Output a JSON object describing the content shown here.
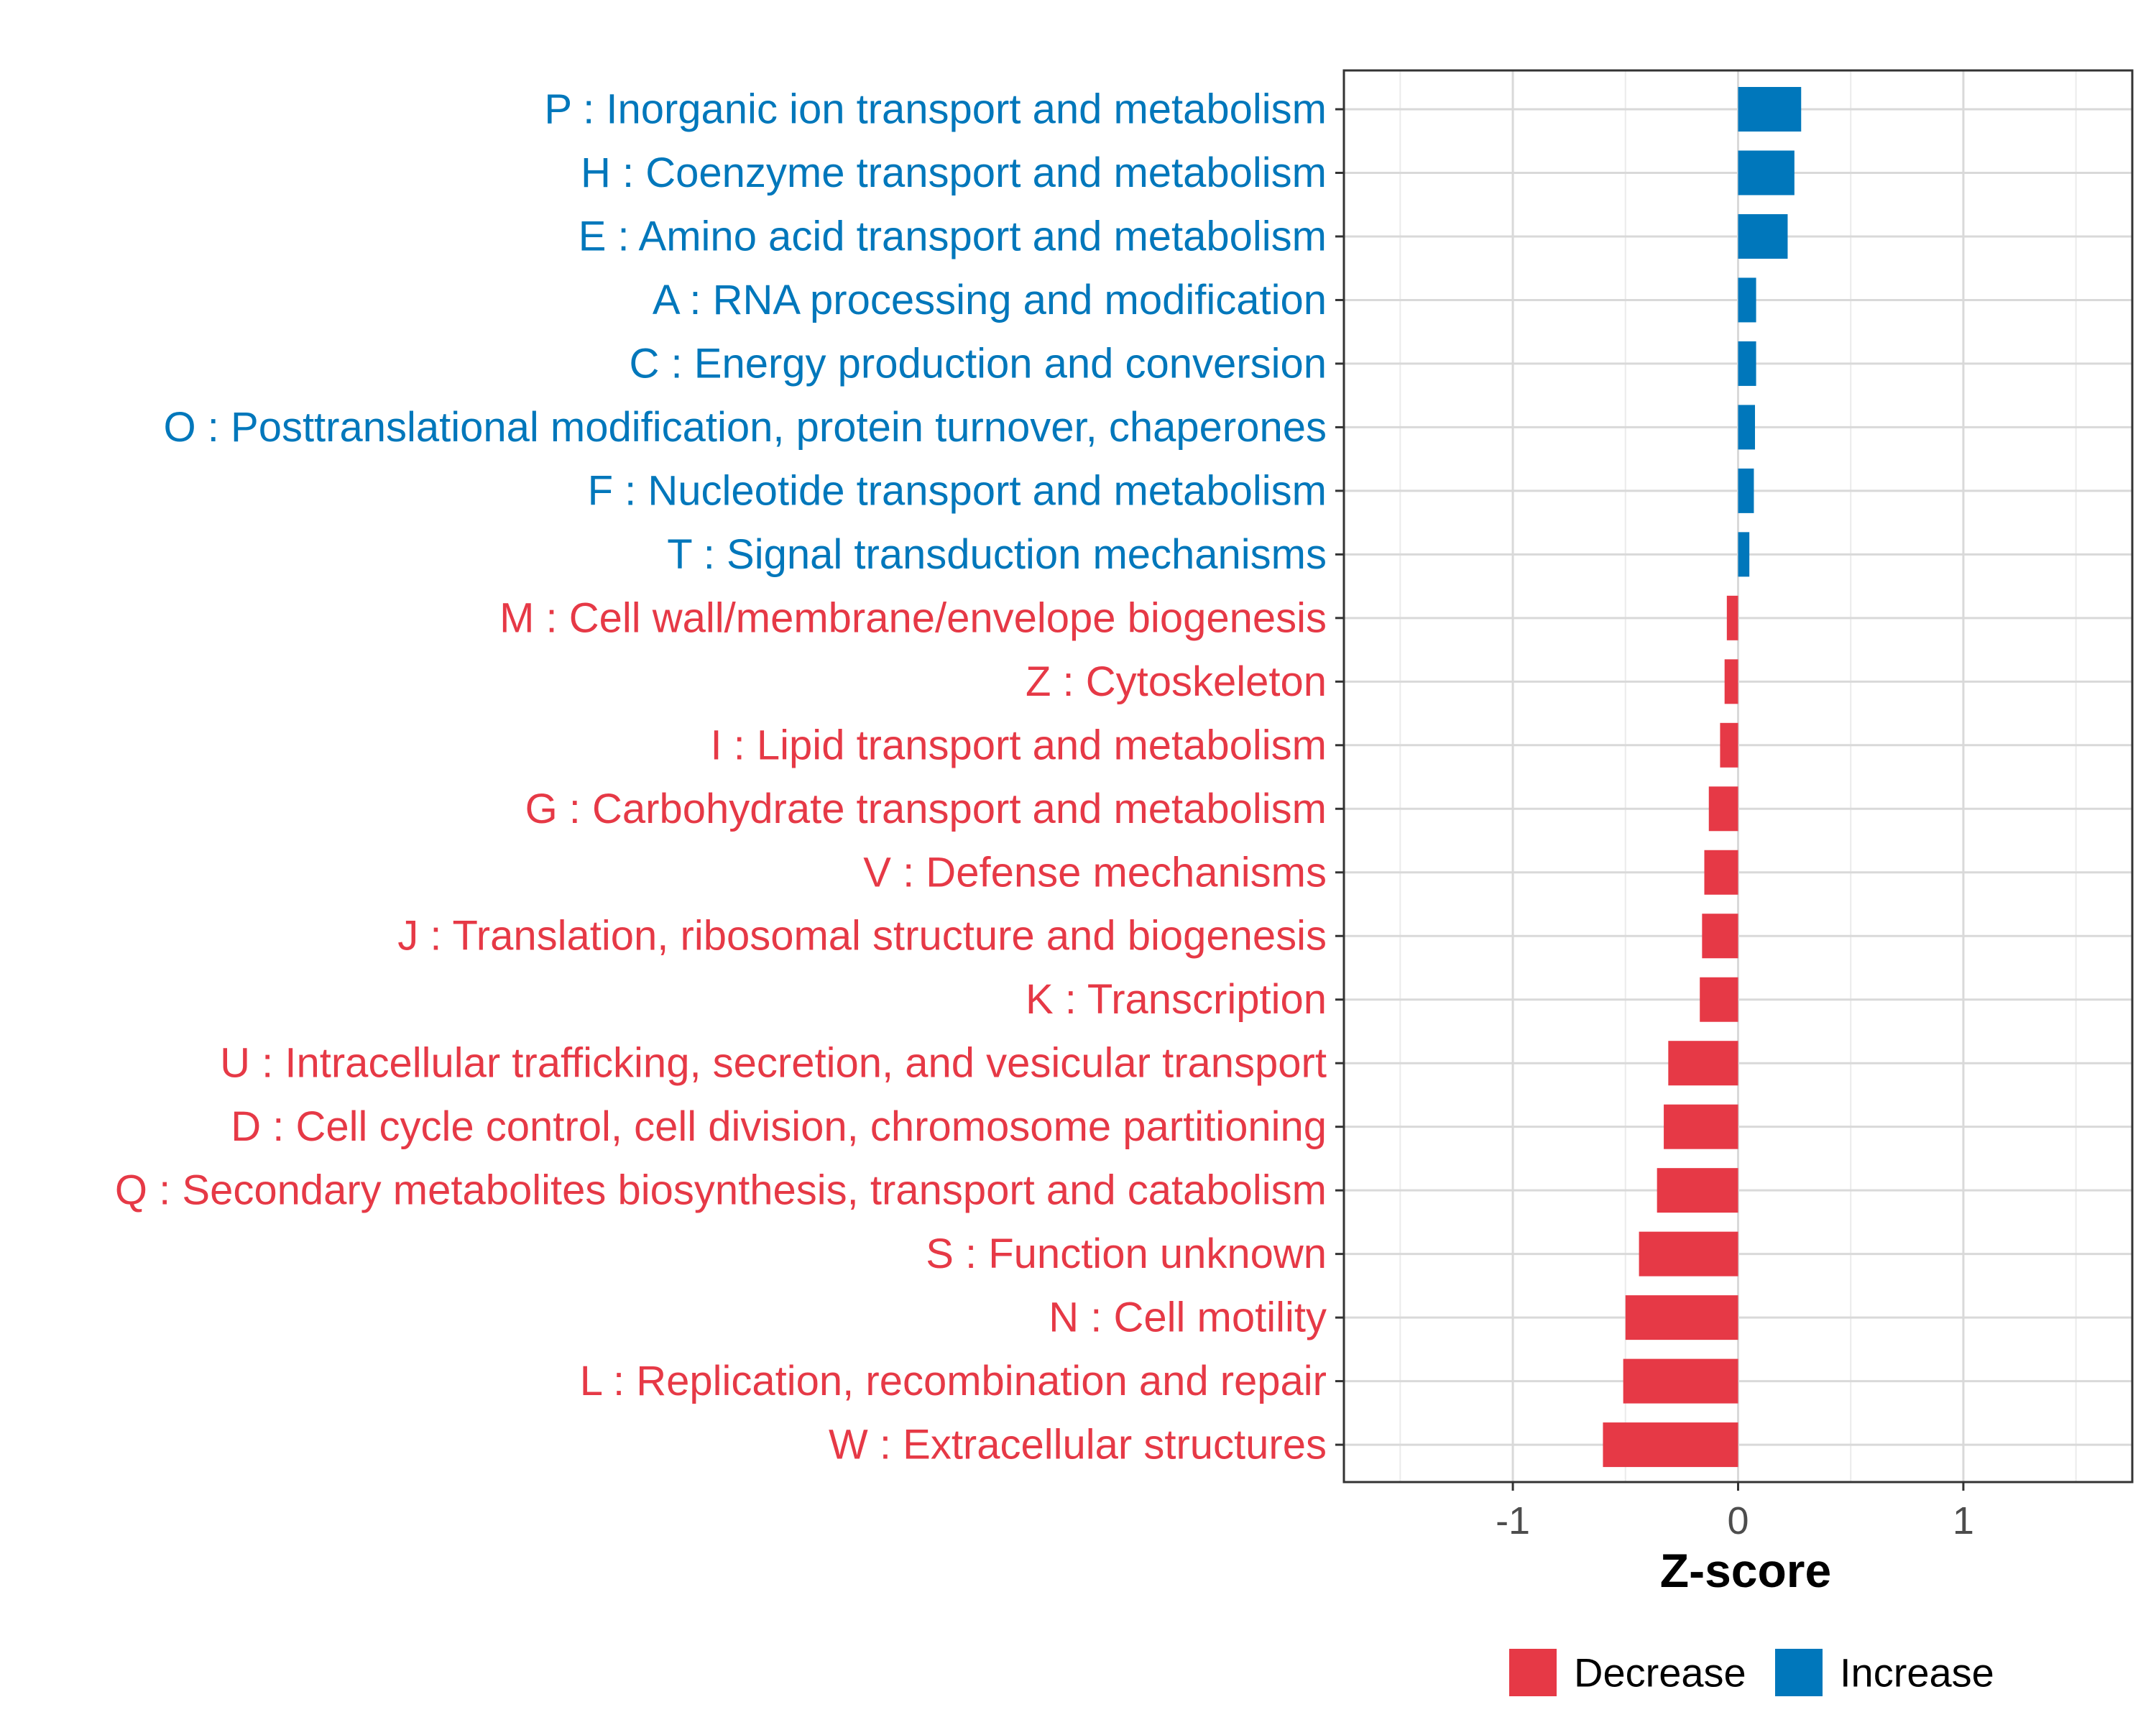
{
  "chart_data": {
    "type": "bar",
    "orientation": "horizontal",
    "title": "",
    "xlabel": "Z-score",
    "ylabel": "",
    "xlim": [
      -1.75,
      1.75
    ],
    "xticks": [
      -1,
      0,
      1
    ],
    "xtick_labels": [
      "-1",
      "0",
      "1"
    ],
    "grid": true,
    "legend_position": "bottom",
    "colors": {
      "Decrease": "#e63946",
      "Increase": "#0077bb"
    },
    "legend": [
      {
        "label": "Decrease",
        "color": "#e63946"
      },
      {
        "label": "Increase",
        "color": "#0077bb"
      }
    ],
    "categories": [
      "P : Inorganic ion transport and metabolism",
      "H : Coenzyme transport and metabolism",
      "E : Amino acid transport and metabolism",
      "A : RNA processing and modification",
      "C : Energy production and conversion",
      "O : Posttranslational modification, protein turnover, chaperones",
      "F : Nucleotide transport and metabolism",
      "T : Signal transduction mechanisms",
      "M : Cell wall/membrane/envelope biogenesis",
      "Z : Cytoskeleton",
      "I : Lipid transport and metabolism",
      "G : Carbohydrate transport and metabolism",
      "V : Defense mechanisms",
      "J : Translation, ribosomal structure and biogenesis",
      "K : Transcription",
      "U : Intracellular trafficking, secretion, and vesicular transport",
      "D : Cell cycle control, cell division, chromosome partitioning",
      "Q : Secondary metabolites biosynthesis, transport and catabolism",
      "S : Function unknown",
      "N : Cell motility",
      "L : Replication, recombination and repair",
      "W : Extracellular structures"
    ],
    "values": [
      0.28,
      0.25,
      0.22,
      0.08,
      0.08,
      0.075,
      0.07,
      0.05,
      -0.05,
      -0.06,
      -0.08,
      -0.13,
      -0.15,
      -0.16,
      -0.17,
      -0.31,
      -0.33,
      -0.36,
      -0.44,
      -0.5,
      -0.51,
      -0.6
    ],
    "groups": [
      "Increase",
      "Increase",
      "Increase",
      "Increase",
      "Increase",
      "Increase",
      "Increase",
      "Increase",
      "Decrease",
      "Decrease",
      "Decrease",
      "Decrease",
      "Decrease",
      "Decrease",
      "Decrease",
      "Decrease",
      "Decrease",
      "Decrease",
      "Decrease",
      "Decrease",
      "Decrease",
      "Decrease"
    ]
  }
}
